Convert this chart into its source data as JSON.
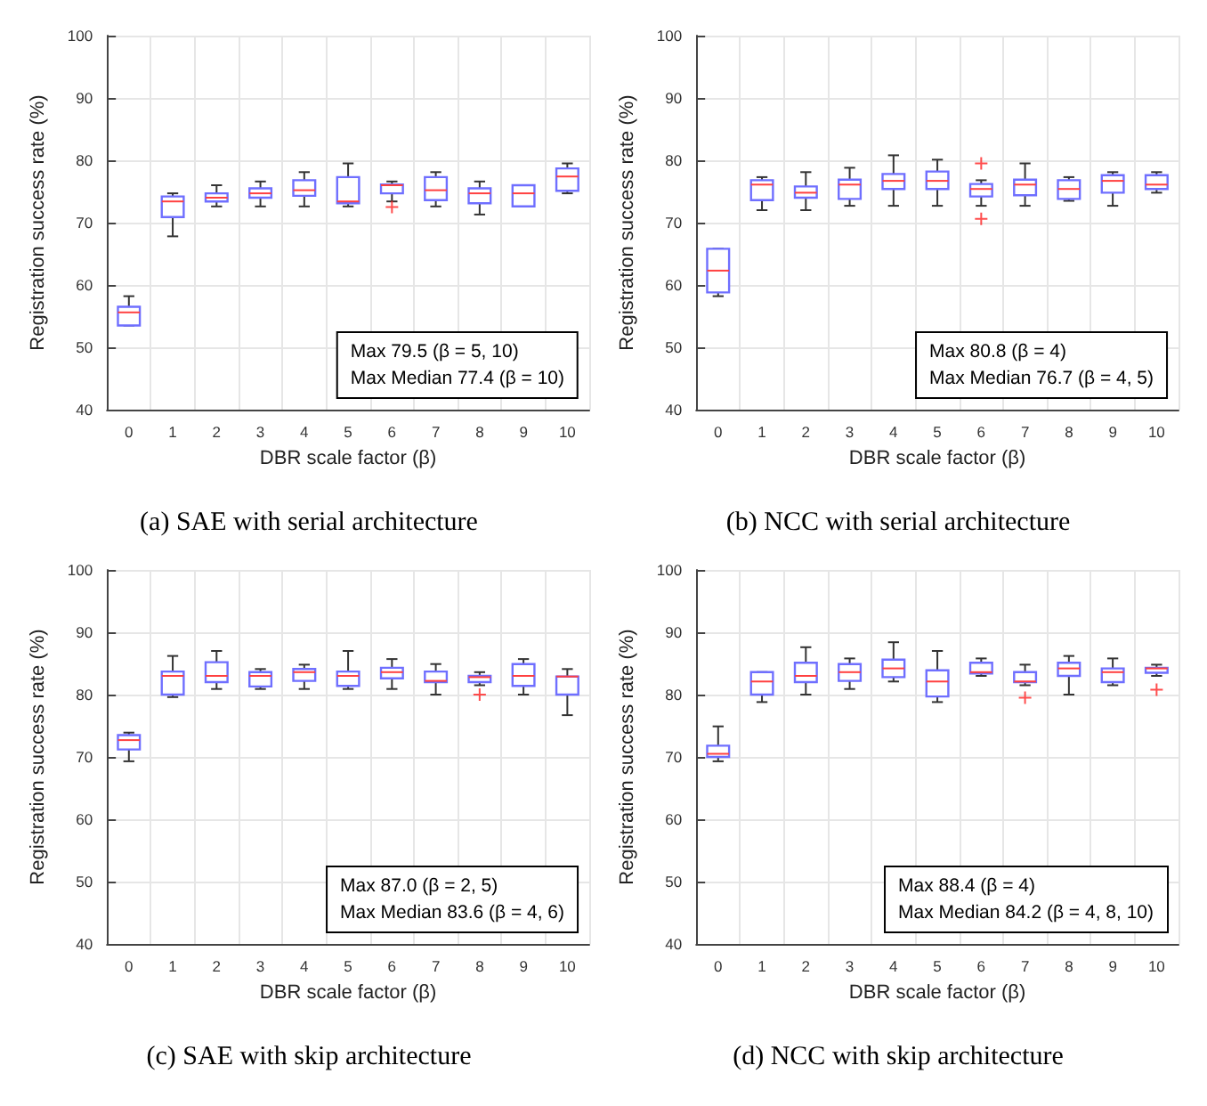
{
  "chart_data": [
    {
      "type": "box",
      "title": "(a) SAE with serial architecture",
      "xlabel": "DBR scale factor (β)",
      "ylabel": "Registration success rate (%)",
      "categories": [
        "0",
        "1",
        "2",
        "3",
        "4",
        "5",
        "6",
        "7",
        "8",
        "9",
        "10"
      ],
      "color": "#6f6fff",
      "ylim": [
        40,
        100
      ],
      "yticks": [
        40,
        50,
        60,
        70,
        80,
        90,
        100
      ],
      "grid": true,
      "annotations": [
        "Max 79.5 (β = 5, 10)",
        "Max Median 77.4 (β = 10)"
      ],
      "boxes": [
        {
          "low": 53.5,
          "q1": 53.5,
          "median": 55.6,
          "q3": 56.5,
          "high": 58.2
        },
        {
          "low": 67.8,
          "q1": 70.9,
          "median": 73.4,
          "q3": 74.2,
          "high": 74.7
        },
        {
          "low": 72.6,
          "q1": 73.4,
          "median": 74.0,
          "q3": 74.7,
          "high": 76.0
        },
        {
          "low": 72.6,
          "q1": 74.0,
          "median": 74.7,
          "q3": 75.5,
          "high": 76.6
        },
        {
          "low": 72.6,
          "q1": 74.3,
          "median": 75.2,
          "q3": 76.8,
          "high": 78.1
        },
        {
          "low": 72.6,
          "q1": 73.1,
          "median": 73.4,
          "q3": 77.3,
          "high": 79.5
        },
        {
          "low": 73.4,
          "q1": 74.7,
          "median": 76.0,
          "q3": 76.1,
          "high": 76.6,
          "outliers": [
            72.5
          ]
        },
        {
          "low": 72.6,
          "q1": 73.6,
          "median": 75.2,
          "q3": 77.3,
          "high": 78.1
        },
        {
          "low": 71.3,
          "q1": 73.1,
          "median": 74.7,
          "q3": 75.5,
          "high": 76.6
        },
        {
          "low": 72.6,
          "q1": 72.6,
          "median": 74.7,
          "q3": 76.0,
          "high": 76.0
        },
        {
          "low": 74.7,
          "q1": 75.1,
          "median": 77.4,
          "q3": 78.7,
          "high": 79.5
        }
      ]
    },
    {
      "type": "box",
      "title": "(b) NCC with serial architecture",
      "xlabel": "DBR scale factor (β)",
      "ylabel": "Registration success rate (%)",
      "categories": [
        "0",
        "1",
        "2",
        "3",
        "4",
        "5",
        "6",
        "7",
        "8",
        "9",
        "10"
      ],
      "color": "#6f6fff",
      "ylim": [
        40,
        100
      ],
      "yticks": [
        40,
        50,
        60,
        70,
        80,
        90,
        100
      ],
      "grid": true,
      "annotations": [
        "Max 80.8 (β = 4)",
        "Max Median 76.7 (β = 4, 5)"
      ],
      "boxes": [
        {
          "low": 58.2,
          "q1": 58.8,
          "median": 62.3,
          "q3": 65.8,
          "high": 65.8
        },
        {
          "low": 72.0,
          "q1": 73.6,
          "median": 76.1,
          "q3": 76.8,
          "high": 77.3
        },
        {
          "low": 72.0,
          "q1": 74.0,
          "median": 74.8,
          "q3": 75.8,
          "high": 78.1
        },
        {
          "low": 72.7,
          "q1": 73.8,
          "median": 76.1,
          "q3": 76.9,
          "high": 78.8
        },
        {
          "low": 72.7,
          "q1": 75.4,
          "median": 76.7,
          "q3": 77.8,
          "high": 80.8
        },
        {
          "low": 72.7,
          "q1": 75.4,
          "median": 76.7,
          "q3": 78.2,
          "high": 80.1
        },
        {
          "low": 72.7,
          "q1": 74.2,
          "median": 75.4,
          "q3": 76.2,
          "high": 76.8,
          "outliers": [
            79.5,
            70.6
          ]
        },
        {
          "low": 72.7,
          "q1": 74.4,
          "median": 76.1,
          "q3": 76.9,
          "high": 79.5
        },
        {
          "low": 73.5,
          "q1": 73.8,
          "median": 75.4,
          "q3": 76.8,
          "high": 77.3
        },
        {
          "low": 72.7,
          "q1": 74.8,
          "median": 76.7,
          "q3": 77.6,
          "high": 78.1
        },
        {
          "low": 74.8,
          "q1": 75.4,
          "median": 76.1,
          "q3": 77.6,
          "high": 78.1
        }
      ]
    },
    {
      "type": "box",
      "title": "(c) SAE with skip architecture",
      "xlabel": "DBR scale factor (β)",
      "ylabel": "Registration success rate (%)",
      "categories": [
        "0",
        "1",
        "2",
        "3",
        "4",
        "5",
        "6",
        "7",
        "8",
        "9",
        "10"
      ],
      "color": "#6f6fff",
      "ylim": [
        40,
        100
      ],
      "yticks": [
        40,
        50,
        60,
        70,
        80,
        90,
        100
      ],
      "grid": true,
      "annotations": [
        "Max 87.0 (β = 2, 5)",
        "Max Median 83.6 (β = 4, 6)"
      ],
      "boxes": [
        {
          "low": 69.3,
          "q1": 71.2,
          "median": 72.7,
          "q3": 73.5,
          "high": 73.9
        },
        {
          "low": 79.6,
          "q1": 80.0,
          "median": 83.0,
          "q3": 83.7,
          "high": 86.2
        },
        {
          "low": 80.9,
          "q1": 82.0,
          "median": 83.0,
          "q3": 85.2,
          "high": 87.0
        },
        {
          "low": 80.9,
          "q1": 81.3,
          "median": 83.0,
          "q3": 83.6,
          "high": 84.1
        },
        {
          "low": 80.9,
          "q1": 82.2,
          "median": 83.6,
          "q3": 84.1,
          "high": 84.8
        },
        {
          "low": 80.9,
          "q1": 81.4,
          "median": 83.0,
          "q3": 83.7,
          "high": 87.0
        },
        {
          "low": 80.9,
          "q1": 82.6,
          "median": 83.6,
          "q3": 84.3,
          "high": 85.7
        },
        {
          "low": 80.0,
          "q1": 82.0,
          "median": 82.2,
          "q3": 83.7,
          "high": 84.9
        },
        {
          "low": 81.5,
          "q1": 82.0,
          "median": 82.8,
          "q3": 83.0,
          "high": 83.6,
          "outliers": [
            80.0
          ]
        },
        {
          "low": 80.0,
          "q1": 81.4,
          "median": 83.0,
          "q3": 84.9,
          "high": 85.7
        },
        {
          "low": 76.7,
          "q1": 80.0,
          "median": 82.9,
          "q3": 82.9,
          "high": 84.1
        }
      ]
    },
    {
      "type": "box",
      "title": "(d) NCC with skip architecture",
      "xlabel": "DBR scale factor (β)",
      "ylabel": "Registration success rate (%)",
      "categories": [
        "0",
        "1",
        "2",
        "3",
        "4",
        "5",
        "6",
        "7",
        "8",
        "9",
        "10"
      ],
      "color": "#6f6fff",
      "ylim": [
        40,
        100
      ],
      "yticks": [
        40,
        50,
        60,
        70,
        80,
        90,
        100
      ],
      "grid": true,
      "annotations": [
        "Max 88.4 (β = 4)",
        "Max Median 84.2 (β = 4, 8, 10)"
      ],
      "boxes": [
        {
          "low": 69.3,
          "q1": 70.0,
          "median": 70.5,
          "q3": 71.8,
          "high": 74.9
        },
        {
          "low": 78.8,
          "q1": 80.0,
          "median": 82.1,
          "q3": 83.6,
          "high": 83.6
        },
        {
          "low": 80.0,
          "q1": 82.0,
          "median": 83.0,
          "q3": 85.1,
          "high": 87.6
        },
        {
          "low": 80.9,
          "q1": 82.2,
          "median": 83.6,
          "q3": 84.9,
          "high": 85.8
        },
        {
          "low": 82.1,
          "q1": 82.8,
          "median": 84.2,
          "q3": 85.6,
          "high": 88.4
        },
        {
          "low": 78.8,
          "q1": 79.7,
          "median": 82.1,
          "q3": 83.9,
          "high": 87.0
        },
        {
          "low": 83.0,
          "q1": 83.4,
          "median": 83.6,
          "q3": 85.1,
          "high": 85.8
        },
        {
          "low": 81.5,
          "q1": 82.0,
          "median": 82.1,
          "q3": 83.6,
          "high": 84.8,
          "outliers": [
            79.5
          ]
        },
        {
          "low": 80.0,
          "q1": 83.0,
          "median": 84.2,
          "q3": 85.1,
          "high": 86.2
        },
        {
          "low": 81.5,
          "q1": 82.0,
          "median": 83.6,
          "q3": 84.2,
          "high": 85.8
        },
        {
          "low": 83.0,
          "q1": 83.5,
          "median": 84.2,
          "q3": 84.3,
          "high": 84.8,
          "outliers": [
            80.8
          ]
        }
      ]
    }
  ]
}
